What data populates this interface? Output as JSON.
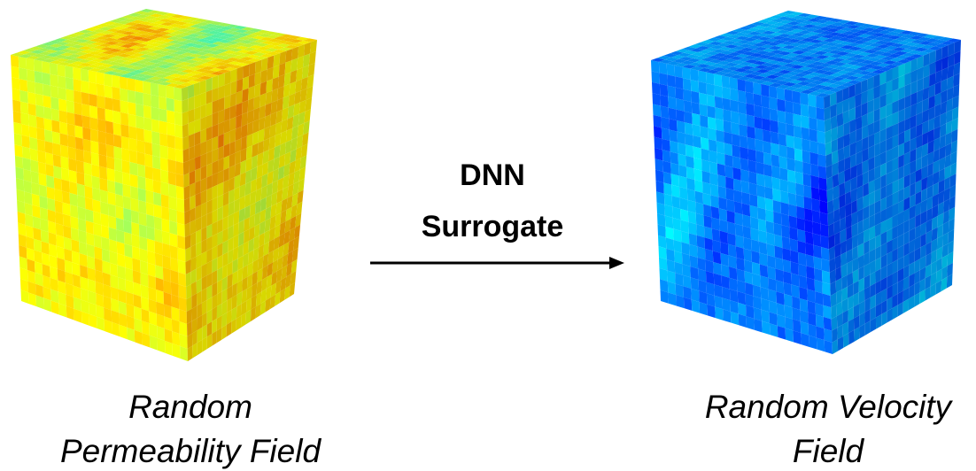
{
  "arrow": {
    "label_lines": [
      "DNN",
      "Surrogate"
    ]
  },
  "nodes": [
    {
      "caption_lines": [
        "Random",
        "Permeability Field"
      ]
    },
    {
      "caption_lines": [
        "Random Velocity",
        "Field"
      ]
    }
  ]
}
